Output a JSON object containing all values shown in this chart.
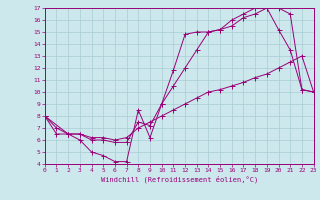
{
  "xlabel": "Windchill (Refroidissement éolien,°C)",
  "xlim": [
    0,
    23
  ],
  "ylim": [
    4,
    17
  ],
  "xticks": [
    0,
    1,
    2,
    3,
    4,
    5,
    6,
    7,
    8,
    9,
    10,
    11,
    12,
    13,
    14,
    15,
    16,
    17,
    18,
    19,
    20,
    21,
    22,
    23
  ],
  "yticks": [
    4,
    5,
    6,
    7,
    8,
    9,
    10,
    11,
    12,
    13,
    14,
    15,
    16,
    17
  ],
  "bg_color": "#cce8ec",
  "line_color": "#990077",
  "grid_color": "#aaccd4",
  "line1_x": [
    0,
    1,
    2,
    3,
    4,
    5,
    6,
    7,
    8,
    9,
    10,
    11,
    12,
    13,
    14,
    15,
    16,
    17,
    18,
    19,
    20,
    21,
    22,
    23
  ],
  "line1_y": [
    8,
    6.5,
    6.5,
    6,
    5,
    4.7,
    4.2,
    4.2,
    8.5,
    6.2,
    9,
    11.8,
    14.8,
    15,
    15,
    15.2,
    16,
    16.5,
    17,
    17,
    15.2,
    13.5,
    10.2,
    10
  ],
  "line2_x": [
    0,
    2,
    3,
    4,
    5,
    6,
    7,
    8,
    9,
    10,
    11,
    12,
    13,
    14,
    15,
    16,
    17,
    18,
    19,
    20,
    21,
    22,
    23
  ],
  "line2_y": [
    8,
    6.5,
    6.5,
    6,
    6,
    5.8,
    5.8,
    7.5,
    7.2,
    9,
    10.5,
    12,
    13.5,
    15,
    15.2,
    15.5,
    16.2,
    16.5,
    17,
    17,
    16.5,
    10.2,
    10
  ],
  "line3_x": [
    0,
    1,
    2,
    3,
    4,
    5,
    6,
    7,
    8,
    9,
    10,
    11,
    12,
    13,
    14,
    15,
    16,
    17,
    18,
    19,
    20,
    21,
    22,
    23
  ],
  "line3_y": [
    8,
    7,
    6.5,
    6.5,
    6.2,
    6.2,
    6,
    6.2,
    7.0,
    7.5,
    8,
    8.5,
    9,
    9.5,
    10,
    10.2,
    10.5,
    10.8,
    11.2,
    11.5,
    12,
    12.5,
    13,
    10
  ]
}
